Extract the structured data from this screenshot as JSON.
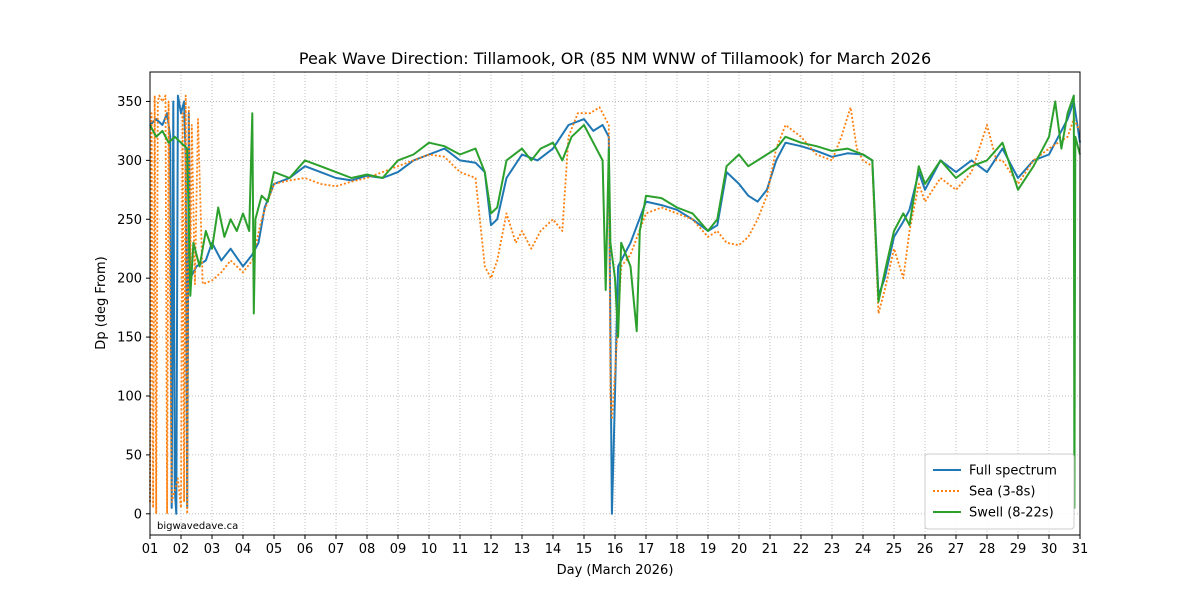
{
  "chart_data": {
    "type": "line",
    "title": "Peak Wave Direction: Tillamook, OR (85 NM WNW of Tillamook) for March 2026",
    "xlabel": "Day (March 2026)",
    "ylabel": "Dp (deg From)",
    "xlim": [
      1,
      31
    ],
    "ylim": [
      -18,
      375
    ],
    "x_ticks": [
      1,
      2,
      3,
      4,
      5,
      6,
      7,
      8,
      9,
      10,
      11,
      12,
      13,
      14,
      15,
      16,
      17,
      18,
      19,
      20,
      21,
      22,
      23,
      24,
      25,
      26,
      27,
      28,
      29,
      30,
      31
    ],
    "x_tick_labels": [
      "01",
      "02",
      "03",
      "04",
      "05",
      "06",
      "07",
      "08",
      "09",
      "10",
      "11",
      "12",
      "13",
      "14",
      "15",
      "16",
      "17",
      "18",
      "19",
      "20",
      "21",
      "22",
      "23",
      "24",
      "25",
      "26",
      "27",
      "28",
      "29",
      "30",
      "31"
    ],
    "y_ticks": [
      0,
      50,
      100,
      150,
      200,
      250,
      300,
      350
    ],
    "y_tick_labels": [
      "0",
      "50",
      "100",
      "150",
      "200",
      "250",
      "300",
      "350"
    ],
    "grid": true,
    "legend_position": "bottom-right",
    "watermark": "bigwavedave.ca",
    "series": [
      {
        "name": "Full spectrum",
        "color": "#1f77b4",
        "style": "solid",
        "points": [
          [
            1.0,
            330
          ],
          [
            1.2,
            335
          ],
          [
            1.4,
            330
          ],
          [
            1.55,
            340
          ],
          [
            1.65,
            320
          ],
          [
            1.7,
            5
          ],
          [
            1.75,
            350
          ],
          [
            1.8,
            20
          ],
          [
            1.85,
            0
          ],
          [
            1.9,
            355
          ],
          [
            2.0,
            340
          ],
          [
            2.1,
            350
          ],
          [
            2.15,
            300
          ],
          [
            2.2,
            5
          ],
          [
            2.25,
            340
          ],
          [
            2.3,
            200
          ],
          [
            2.5,
            210
          ],
          [
            2.8,
            215
          ],
          [
            3.0,
            230
          ],
          [
            3.3,
            215
          ],
          [
            3.6,
            225
          ],
          [
            4.0,
            210
          ],
          [
            4.3,
            220
          ],
          [
            4.5,
            230
          ],
          [
            4.7,
            260
          ],
          [
            5.0,
            280
          ],
          [
            5.5,
            285
          ],
          [
            6.0,
            295
          ],
          [
            6.5,
            290
          ],
          [
            7.0,
            285
          ],
          [
            7.5,
            283
          ],
          [
            8.0,
            287
          ],
          [
            8.5,
            285
          ],
          [
            9.0,
            290
          ],
          [
            9.5,
            300
          ],
          [
            10.0,
            305
          ],
          [
            10.5,
            310
          ],
          [
            11.0,
            300
          ],
          [
            11.5,
            298
          ],
          [
            11.8,
            290
          ],
          [
            12.0,
            245
          ],
          [
            12.2,
            250
          ],
          [
            12.5,
            285
          ],
          [
            13.0,
            305
          ],
          [
            13.5,
            300
          ],
          [
            14.0,
            310
          ],
          [
            14.5,
            330
          ],
          [
            15.0,
            335
          ],
          [
            15.3,
            325
          ],
          [
            15.6,
            330
          ],
          [
            15.8,
            320
          ],
          [
            15.9,
            0
          ],
          [
            15.95,
            50
          ],
          [
            16.1,
            210
          ],
          [
            16.5,
            230
          ],
          [
            17.0,
            265
          ],
          [
            17.5,
            262
          ],
          [
            18.0,
            258
          ],
          [
            18.5,
            250
          ],
          [
            19.0,
            240
          ],
          [
            19.3,
            245
          ],
          [
            19.6,
            290
          ],
          [
            20.0,
            280
          ],
          [
            20.3,
            270
          ],
          [
            20.6,
            265
          ],
          [
            20.9,
            275
          ],
          [
            21.2,
            300
          ],
          [
            21.5,
            315
          ],
          [
            22.0,
            312
          ],
          [
            22.5,
            308
          ],
          [
            23.0,
            303
          ],
          [
            23.5,
            306
          ],
          [
            24.0,
            305
          ],
          [
            24.3,
            300
          ],
          [
            24.5,
            185
          ],
          [
            24.7,
            200
          ],
          [
            25.0,
            235
          ],
          [
            25.3,
            248
          ],
          [
            25.5,
            258
          ],
          [
            25.8,
            290
          ],
          [
            26.0,
            275
          ],
          [
            26.5,
            300
          ],
          [
            27.0,
            290
          ],
          [
            27.5,
            300
          ],
          [
            28.0,
            290
          ],
          [
            28.5,
            310
          ],
          [
            29.0,
            285
          ],
          [
            29.5,
            300
          ],
          [
            30.0,
            305
          ],
          [
            30.3,
            320
          ],
          [
            30.6,
            335
          ],
          [
            30.8,
            350
          ],
          [
            31.0,
            315
          ]
        ]
      },
      {
        "name": "Sea (3-8s)",
        "color": "#ff7f0e",
        "style": "dotted",
        "points": [
          [
            1.0,
            10
          ],
          [
            1.05,
            340
          ],
          [
            1.1,
            5
          ],
          [
            1.15,
            355
          ],
          [
            1.2,
            0
          ],
          [
            1.25,
            350
          ],
          [
            1.3,
            355
          ],
          [
            1.4,
            350
          ],
          [
            1.5,
            355
          ],
          [
            1.55,
            0
          ],
          [
            1.6,
            350
          ],
          [
            1.7,
            10
          ],
          [
            1.8,
            20
          ],
          [
            1.9,
            30
          ],
          [
            2.0,
            5
          ],
          [
            2.05,
            340
          ],
          [
            2.1,
            10
          ],
          [
            2.15,
            355
          ],
          [
            2.2,
            0
          ],
          [
            2.25,
            345
          ],
          [
            2.3,
            200
          ],
          [
            2.35,
            330
          ],
          [
            2.45,
            195
          ],
          [
            2.55,
            335
          ],
          [
            2.7,
            195
          ],
          [
            3.0,
            198
          ],
          [
            3.3,
            205
          ],
          [
            3.6,
            215
          ],
          [
            4.0,
            205
          ],
          [
            4.3,
            215
          ],
          [
            4.6,
            250
          ],
          [
            5.0,
            280
          ],
          [
            5.5,
            283
          ],
          [
            6.0,
            285
          ],
          [
            6.5,
            280
          ],
          [
            7.0,
            278
          ],
          [
            7.5,
            282
          ],
          [
            8.0,
            285
          ],
          [
            8.5,
            290
          ],
          [
            9.0,
            295
          ],
          [
            9.5,
            300
          ],
          [
            10.0,
            305
          ],
          [
            10.5,
            303
          ],
          [
            11.0,
            290
          ],
          [
            11.5,
            285
          ],
          [
            11.8,
            210
          ],
          [
            12.0,
            200
          ],
          [
            12.2,
            215
          ],
          [
            12.5,
            255
          ],
          [
            12.8,
            230
          ],
          [
            13.0,
            240
          ],
          [
            13.3,
            225
          ],
          [
            13.6,
            240
          ],
          [
            14.0,
            250
          ],
          [
            14.3,
            240
          ],
          [
            14.5,
            320
          ],
          [
            14.8,
            340
          ],
          [
            15.2,
            340
          ],
          [
            15.5,
            345
          ],
          [
            15.8,
            330
          ],
          [
            15.85,
            100
          ],
          [
            15.9,
            80
          ],
          [
            16.0,
            120
          ],
          [
            16.2,
            210
          ],
          [
            16.5,
            220
          ],
          [
            17.0,
            255
          ],
          [
            17.5,
            260
          ],
          [
            18.0,
            255
          ],
          [
            18.5,
            250
          ],
          [
            19.0,
            235
          ],
          [
            19.3,
            240
          ],
          [
            19.6,
            230
          ],
          [
            20.0,
            228
          ],
          [
            20.3,
            235
          ],
          [
            20.6,
            250
          ],
          [
            20.9,
            270
          ],
          [
            21.2,
            310
          ],
          [
            21.5,
            330
          ],
          [
            22.0,
            320
          ],
          [
            22.5,
            305
          ],
          [
            23.0,
            300
          ],
          [
            23.3,
            320
          ],
          [
            23.6,
            345
          ],
          [
            23.8,
            310
          ],
          [
            24.0,
            300
          ],
          [
            24.3,
            295
          ],
          [
            24.5,
            170
          ],
          [
            24.7,
            190
          ],
          [
            25.0,
            225
          ],
          [
            25.3,
            200
          ],
          [
            25.5,
            240
          ],
          [
            25.8,
            280
          ],
          [
            26.0,
            265
          ],
          [
            26.5,
            285
          ],
          [
            27.0,
            275
          ],
          [
            27.5,
            290
          ],
          [
            28.0,
            330
          ],
          [
            28.3,
            300
          ],
          [
            28.5,
            300
          ],
          [
            29.0,
            280
          ],
          [
            29.5,
            300
          ],
          [
            30.0,
            310
          ],
          [
            30.3,
            315
          ],
          [
            30.6,
            320
          ],
          [
            30.8,
            335
          ],
          [
            31.0,
            325
          ]
        ]
      },
      {
        "name": "Swell (8-22s)",
        "color": "#2ca02c",
        "style": "solid",
        "points": [
          [
            1.0,
            330
          ],
          [
            1.2,
            320
          ],
          [
            1.4,
            325
          ],
          [
            1.6,
            315
          ],
          [
            1.8,
            320
          ],
          [
            2.0,
            315
          ],
          [
            2.2,
            310
          ],
          [
            2.3,
            185
          ],
          [
            2.4,
            230
          ],
          [
            2.6,
            210
          ],
          [
            2.8,
            240
          ],
          [
            3.0,
            225
          ],
          [
            3.2,
            260
          ],
          [
            3.4,
            235
          ],
          [
            3.6,
            250
          ],
          [
            3.8,
            240
          ],
          [
            4.0,
            255
          ],
          [
            4.2,
            240
          ],
          [
            4.3,
            340
          ],
          [
            4.35,
            170
          ],
          [
            4.4,
            250
          ],
          [
            4.6,
            270
          ],
          [
            4.8,
            265
          ],
          [
            5.0,
            290
          ],
          [
            5.5,
            285
          ],
          [
            6.0,
            300
          ],
          [
            6.5,
            295
          ],
          [
            7.0,
            290
          ],
          [
            7.5,
            285
          ],
          [
            8.0,
            288
          ],
          [
            8.5,
            285
          ],
          [
            9.0,
            300
          ],
          [
            9.5,
            305
          ],
          [
            10.0,
            315
          ],
          [
            10.5,
            312
          ],
          [
            11.0,
            305
          ],
          [
            11.5,
            310
          ],
          [
            11.8,
            290
          ],
          [
            12.0,
            255
          ],
          [
            12.2,
            260
          ],
          [
            12.5,
            300
          ],
          [
            13.0,
            310
          ],
          [
            13.3,
            300
          ],
          [
            13.6,
            310
          ],
          [
            14.0,
            315
          ],
          [
            14.3,
            300
          ],
          [
            14.6,
            320
          ],
          [
            15.0,
            330
          ],
          [
            15.3,
            315
          ],
          [
            15.6,
            300
          ],
          [
            15.7,
            190
          ],
          [
            15.8,
            310
          ],
          [
            15.85,
            230
          ],
          [
            16.0,
            200
          ],
          [
            16.1,
            150
          ],
          [
            16.2,
            230
          ],
          [
            16.5,
            210
          ],
          [
            16.7,
            155
          ],
          [
            16.8,
            240
          ],
          [
            17.0,
            270
          ],
          [
            17.5,
            268
          ],
          [
            18.0,
            260
          ],
          [
            18.5,
            255
          ],
          [
            19.0,
            240
          ],
          [
            19.3,
            250
          ],
          [
            19.6,
            295
          ],
          [
            20.0,
            305
          ],
          [
            20.3,
            295
          ],
          [
            20.6,
            300
          ],
          [
            20.9,
            305
          ],
          [
            21.2,
            310
          ],
          [
            21.5,
            320
          ],
          [
            22.0,
            315
          ],
          [
            22.5,
            312
          ],
          [
            23.0,
            308
          ],
          [
            23.5,
            310
          ],
          [
            24.0,
            305
          ],
          [
            24.3,
            300
          ],
          [
            24.5,
            180
          ],
          [
            24.7,
            205
          ],
          [
            25.0,
            240
          ],
          [
            25.3,
            255
          ],
          [
            25.5,
            245
          ],
          [
            25.8,
            295
          ],
          [
            26.0,
            280
          ],
          [
            26.5,
            300
          ],
          [
            27.0,
            285
          ],
          [
            27.5,
            295
          ],
          [
            28.0,
            300
          ],
          [
            28.5,
            315
          ],
          [
            29.0,
            275
          ],
          [
            29.5,
            295
          ],
          [
            30.0,
            320
          ],
          [
            30.2,
            350
          ],
          [
            30.4,
            310
          ],
          [
            30.6,
            340
          ],
          [
            30.8,
            355
          ],
          [
            30.82,
            5
          ],
          [
            30.85,
            320
          ],
          [
            31.0,
            305
          ]
        ]
      }
    ]
  }
}
